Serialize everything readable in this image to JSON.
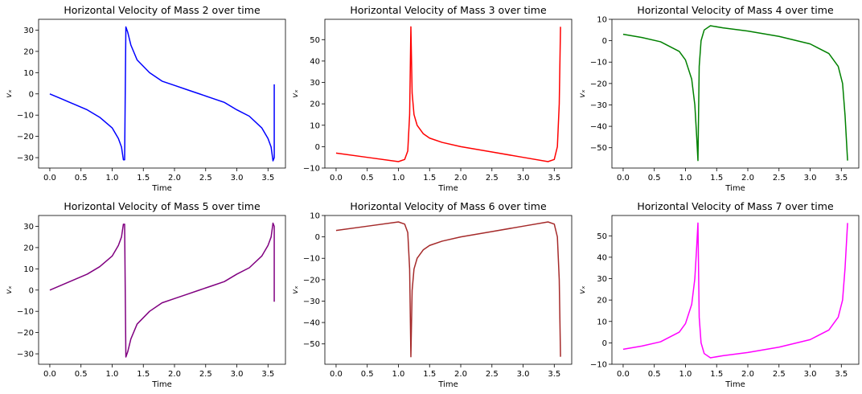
{
  "chart_data": [
    {
      "type": "line",
      "title": "Horizontal Velocity of Mass 2 over time",
      "xlabel": "Time",
      "ylabel": "vₓ",
      "xlim": [
        -0.18,
        3.78
      ],
      "ylim": [
        -34.9,
        35.1
      ],
      "xticks": [
        0.0,
        0.5,
        1.0,
        1.5,
        2.0,
        2.5,
        3.0,
        3.5
      ],
      "yticks": [
        -30,
        -20,
        -10,
        0,
        10,
        20,
        30
      ],
      "color": "#0000ff",
      "series": [
        {
          "x": [
            0.0,
            0.2,
            0.4,
            0.6,
            0.8,
            1.0,
            1.1,
            1.15,
            1.18,
            1.2,
            1.22,
            1.25,
            1.3,
            1.4,
            1.6,
            1.8,
            2.0,
            2.2,
            2.4,
            2.6,
            2.8,
            3.0,
            3.2,
            3.4,
            3.5,
            3.55,
            3.58,
            3.6,
            3.6
          ],
          "y": [
            0.0,
            -2.5,
            -5.0,
            -7.5,
            -11.0,
            -16.0,
            -21.0,
            -25.0,
            -31.0,
            -31.0,
            31.5,
            29.0,
            23.0,
            16.0,
            10.0,
            6.0,
            4.0,
            2.0,
            0.0,
            -2.0,
            -4.0,
            -7.5,
            -10.5,
            -16.0,
            -21.0,
            -25.0,
            -31.5,
            -30.0,
            4.5
          ]
        }
      ]
    },
    {
      "type": "line",
      "title": "Horizontal Velocity of Mass 3 over time",
      "xlabel": "Time",
      "ylabel": "vₓ",
      "xlim": [
        -0.18,
        3.78
      ],
      "ylim": [
        -10.0,
        59.5
      ],
      "xticks": [
        0.0,
        0.5,
        1.0,
        1.5,
        2.0,
        2.5,
        3.0,
        3.5
      ],
      "yticks": [
        -10,
        0,
        10,
        20,
        30,
        40,
        50
      ],
      "color": "#ff0000",
      "series": [
        {
          "x": [
            0.0,
            0.5,
            1.0,
            1.1,
            1.15,
            1.18,
            1.2,
            1.22,
            1.25,
            1.3,
            1.4,
            1.5,
            1.7,
            2.0,
            2.5,
            3.0,
            3.4,
            3.5,
            3.55,
            3.58,
            3.6
          ],
          "y": [
            -3.0,
            -5.0,
            -7.0,
            -6.0,
            -2.0,
            15.0,
            56.0,
            25.0,
            15.0,
            10.0,
            6.0,
            4.0,
            2.0,
            0.0,
            -2.5,
            -5.0,
            -7.0,
            -6.0,
            0.0,
            20.0,
            56.0
          ]
        }
      ]
    },
    {
      "type": "line",
      "title": "Horizontal Velocity of Mass 4 over time",
      "xlabel": "Time",
      "ylabel": "vₓ",
      "xlim": [
        -0.18,
        3.78
      ],
      "ylim": [
        -59.5,
        10.0
      ],
      "xticks": [
        0.0,
        0.5,
        1.0,
        1.5,
        2.0,
        2.5,
        3.0,
        3.5
      ],
      "yticks": [
        -50,
        -40,
        -30,
        -20,
        -10,
        0,
        10
      ],
      "color": "#008000",
      "series": [
        {
          "x": [
            0.0,
            0.3,
            0.6,
            0.9,
            1.0,
            1.1,
            1.15,
            1.18,
            1.2,
            1.22,
            1.25,
            1.3,
            1.4,
            1.6,
            2.0,
            2.5,
            3.0,
            3.3,
            3.45,
            3.52,
            3.56,
            3.6
          ],
          "y": [
            3.0,
            1.5,
            -0.5,
            -5.0,
            -9.0,
            -18.0,
            -30.0,
            -45.0,
            -56.0,
            -12.0,
            0.0,
            5.0,
            7.0,
            6.0,
            4.5,
            2.0,
            -1.5,
            -6.0,
            -12.0,
            -20.0,
            -35.0,
            -56.0
          ]
        }
      ]
    },
    {
      "type": "line",
      "title": "Horizontal Velocity of Mass 5 over time",
      "xlabel": "Time",
      "ylabel": "vₓ",
      "xlim": [
        -0.18,
        3.78
      ],
      "ylim": [
        -34.9,
        35.1
      ],
      "xticks": [
        0.0,
        0.5,
        1.0,
        1.5,
        2.0,
        2.5,
        3.0,
        3.5
      ],
      "yticks": [
        -30,
        -20,
        -10,
        0,
        10,
        20,
        30
      ],
      "color": "#800080",
      "series": [
        {
          "x": [
            0.0,
            0.2,
            0.4,
            0.6,
            0.8,
            1.0,
            1.1,
            1.15,
            1.18,
            1.2,
            1.22,
            1.25,
            1.3,
            1.4,
            1.6,
            1.8,
            2.0,
            2.2,
            2.4,
            2.6,
            2.8,
            3.0,
            3.2,
            3.4,
            3.5,
            3.55,
            3.58,
            3.6,
            3.6
          ],
          "y": [
            0.0,
            2.5,
            5.0,
            7.5,
            11.0,
            16.0,
            21.0,
            25.0,
            31.0,
            31.0,
            -31.5,
            -29.0,
            -23.0,
            -16.0,
            -10.0,
            -6.0,
            -4.0,
            -2.0,
            0.0,
            2.0,
            4.0,
            7.5,
            10.5,
            16.0,
            21.0,
            25.0,
            31.5,
            30.0,
            -5.5
          ]
        }
      ]
    },
    {
      "type": "line",
      "title": "Horizontal Velocity of Mass 6 over time",
      "xlabel": "Time",
      "ylabel": "vₓ",
      "xlim": [
        -0.18,
        3.78
      ],
      "ylim": [
        -59.5,
        10.0
      ],
      "xticks": [
        0.0,
        0.5,
        1.0,
        1.5,
        2.0,
        2.5,
        3.0,
        3.5
      ],
      "yticks": [
        -50,
        -40,
        -30,
        -20,
        -10,
        0,
        10
      ],
      "color": "#a52a2a",
      "series": [
        {
          "x": [
            0.0,
            0.5,
            1.0,
            1.1,
            1.15,
            1.18,
            1.2,
            1.22,
            1.25,
            1.3,
            1.4,
            1.5,
            1.7,
            2.0,
            2.5,
            3.0,
            3.4,
            3.5,
            3.55,
            3.58,
            3.6
          ],
          "y": [
            3.0,
            5.0,
            7.0,
            6.0,
            2.0,
            -15.0,
            -56.0,
            -25.0,
            -15.0,
            -10.0,
            -6.0,
            -4.0,
            -2.0,
            0.0,
            2.5,
            5.0,
            7.0,
            6.0,
            0.0,
            -20.0,
            -56.0
          ]
        }
      ]
    },
    {
      "type": "line",
      "title": "Horizontal Velocity of Mass 7 over time",
      "xlabel": "Time",
      "ylabel": "vₓ",
      "xlim": [
        -0.18,
        3.78
      ],
      "ylim": [
        -10.0,
        59.5
      ],
      "xticks": [
        0.0,
        0.5,
        1.0,
        1.5,
        2.0,
        2.5,
        3.0,
        3.5
      ],
      "yticks": [
        -10,
        0,
        10,
        20,
        30,
        40,
        50
      ],
      "color": "#ff00ff",
      "series": [
        {
          "x": [
            0.0,
            0.3,
            0.6,
            0.9,
            1.0,
            1.1,
            1.15,
            1.18,
            1.2,
            1.22,
            1.25,
            1.3,
            1.4,
            1.6,
            2.0,
            2.5,
            3.0,
            3.3,
            3.45,
            3.52,
            3.56,
            3.6
          ],
          "y": [
            -3.0,
            -1.5,
            0.5,
            5.0,
            9.0,
            18.0,
            30.0,
            45.0,
            56.0,
            12.0,
            0.0,
            -5.0,
            -7.0,
            -6.0,
            -4.5,
            -2.0,
            1.5,
            6.0,
            12.0,
            20.0,
            35.0,
            56.0
          ]
        }
      ]
    }
  ]
}
